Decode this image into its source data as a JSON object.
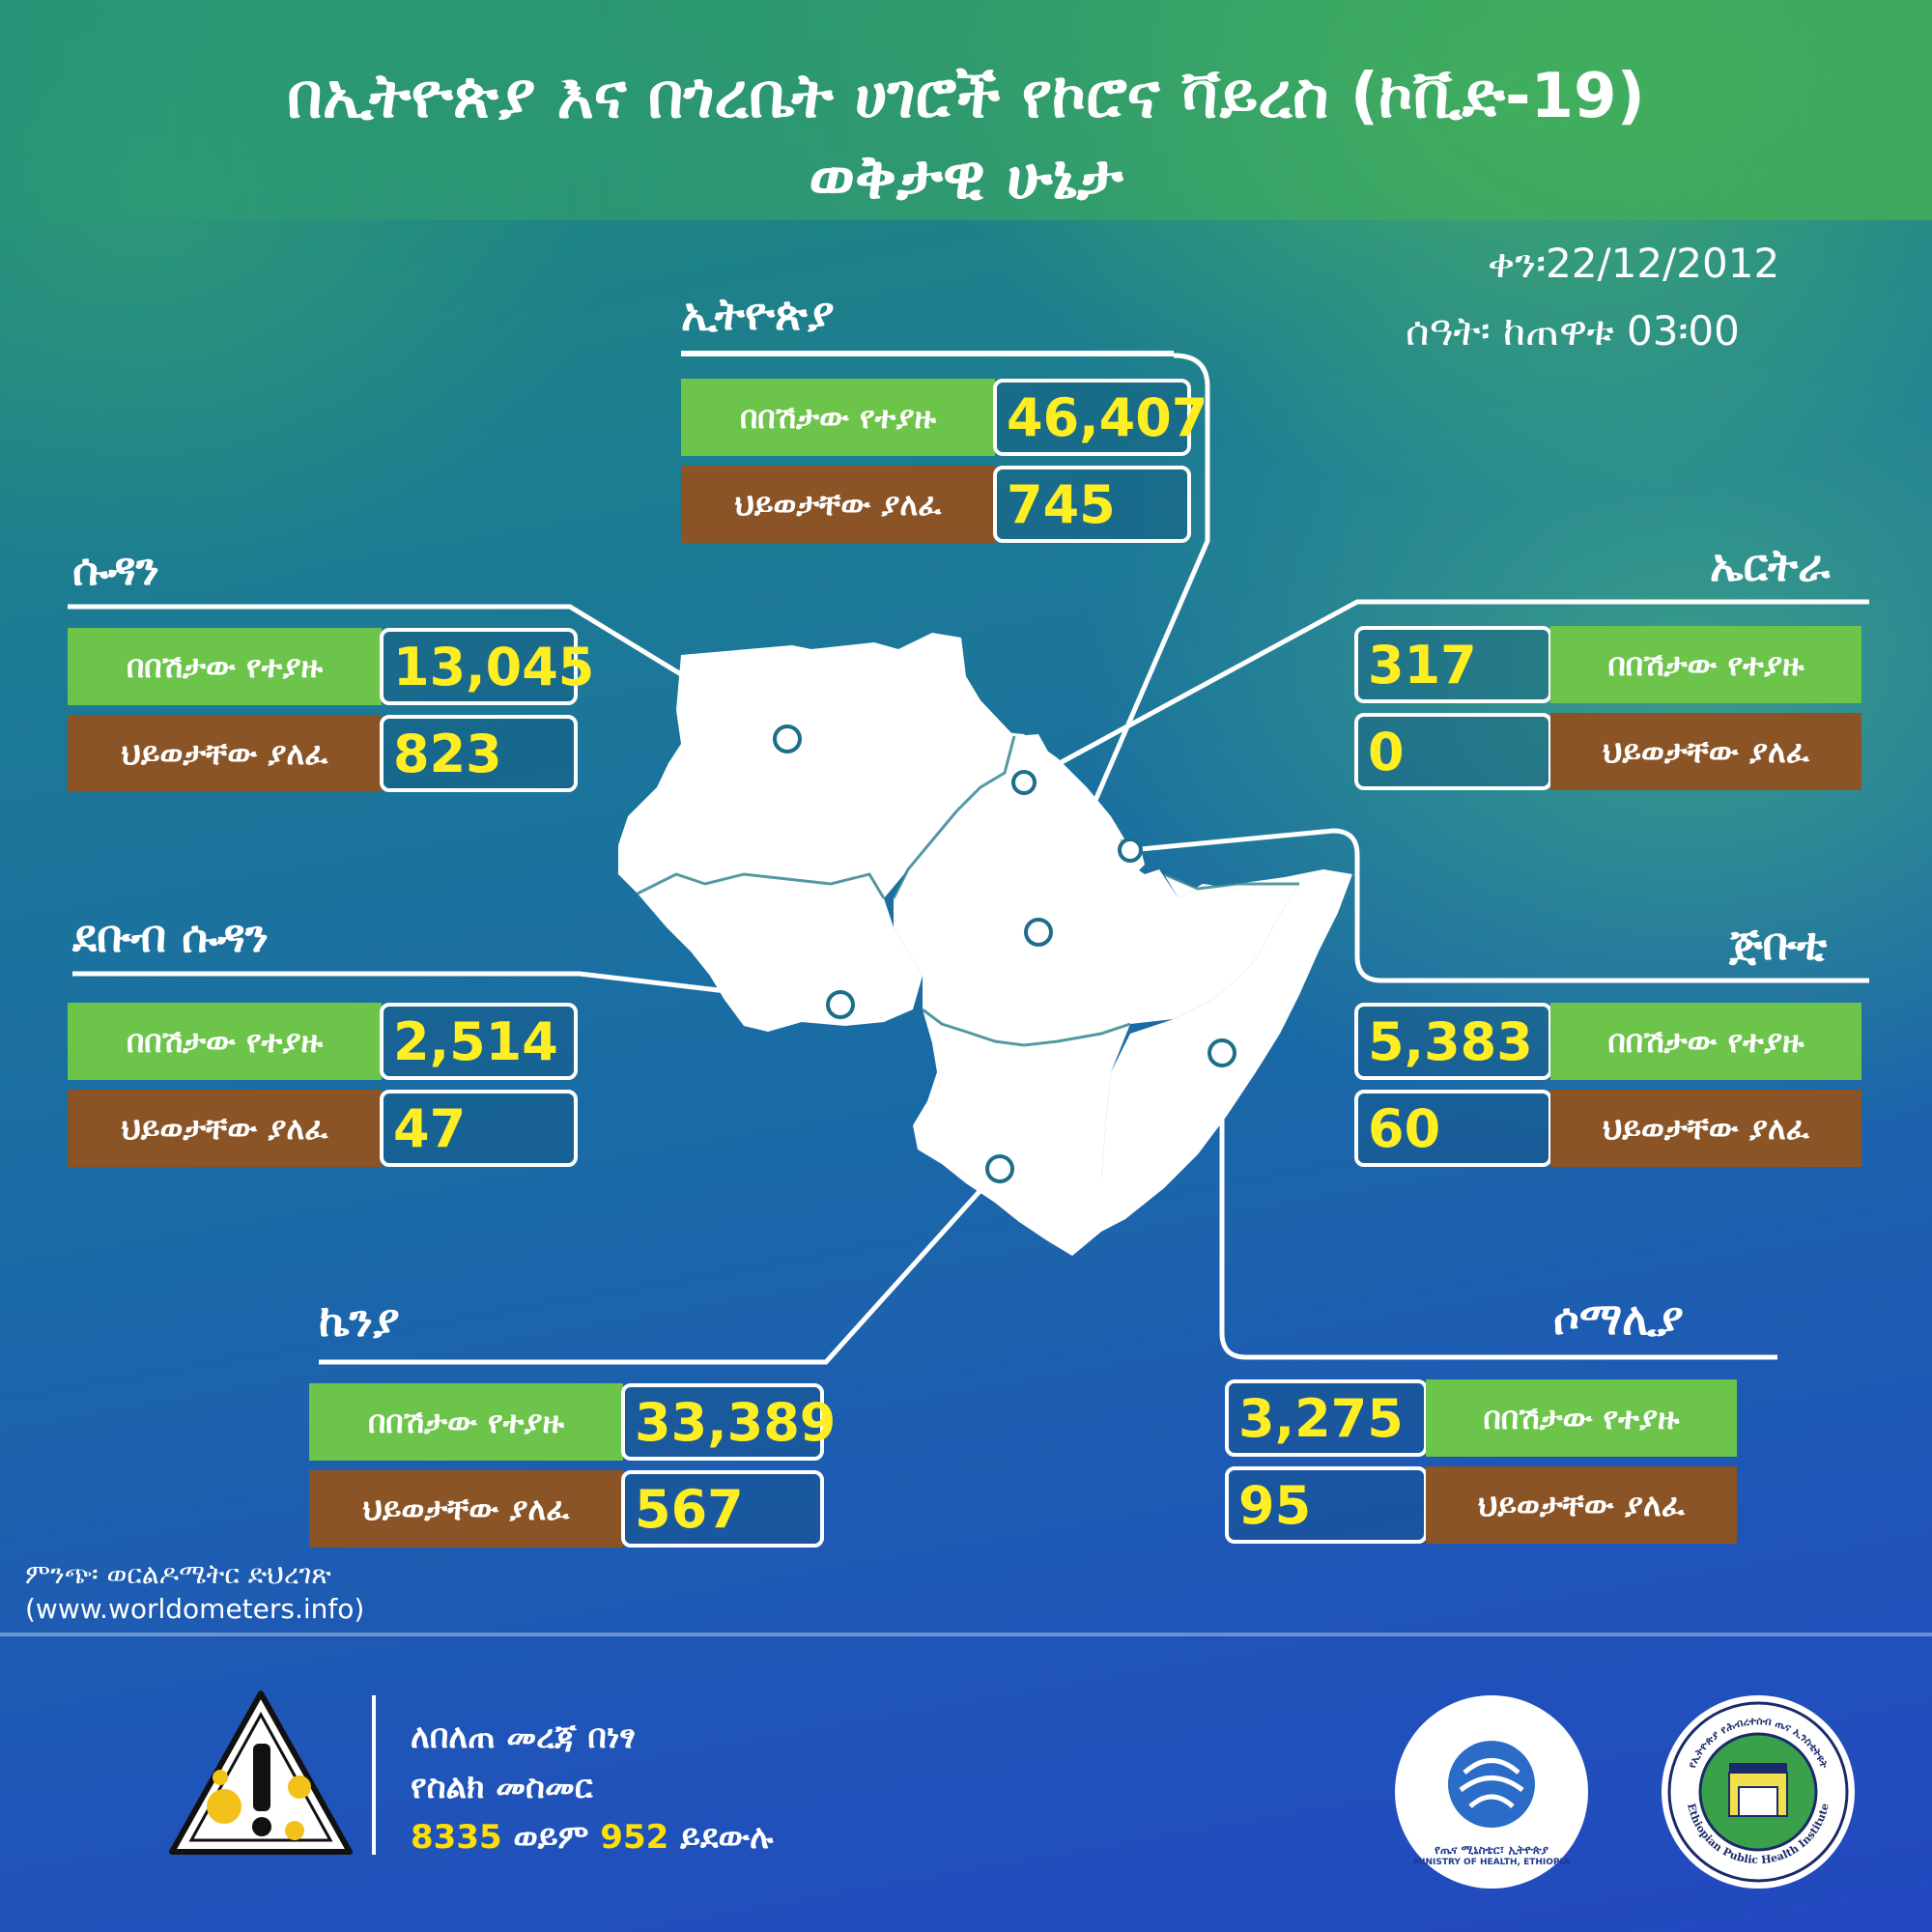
{
  "title": {
    "line1": "በኢትዮጵያ እና በጎረቤት ሀገሮች የኮሮና ቫይረስ (ኮቪድ-19)",
    "line2": "ወቅታዊ ሁኔታ"
  },
  "date": "ቀን፡22/12/2012",
  "time": "ሰዓት፡ ከጠዋቱ 03፡00",
  "labels": {
    "cases": "በበሽታው የተያዙ",
    "deaths": "ህይወታቸው ያለፈ"
  },
  "countries": {
    "ethiopia": {
      "name": "ኢትዮጵያ",
      "cases": "46,407",
      "deaths": "745"
    },
    "sudan": {
      "name": "ሱዳን",
      "cases": "13,045",
      "deaths": "823"
    },
    "south_sudan": {
      "name": "ደቡብ ሱዳን",
      "cases": "2,514",
      "deaths": "47"
    },
    "kenya": {
      "name": "ኬንያ",
      "cases": "33,389",
      "deaths": "567"
    },
    "eritrea": {
      "name": "ኤርትራ",
      "cases": "317",
      "deaths": "0"
    },
    "djibouti": {
      "name": "ጅቡቲ",
      "cases": "5,383",
      "deaths": "60"
    },
    "somalia": {
      "name": "ሶማሊያ",
      "cases": "3,275",
      "deaths": "95"
    }
  },
  "source": {
    "line1": "ምንጭ፡ ወርልዶሜትር ድህረገጽ",
    "line2": "(www.worldometers.info)"
  },
  "hotline": {
    "line1": "ለበለጠ መረጃ በነፃ",
    "line2": "የስልክ መስመር",
    "num1": "8335",
    "or": " ወይም ",
    "num2": "952",
    "call": " ይደውሉ"
  },
  "logos": {
    "moh_text": "የጤና ሚኒስቴር፣ ኢትዮጵያ",
    "moh_text_en": "MINISTRY OF HEALTH, ETHIOPIA",
    "ephi_ring": "የኢትዮጵያ የሕብረተሰብ ጤና ኢንስቲትዩት",
    "ephi_ring_en": "Ethiopian Public Health Institute"
  },
  "colors": {
    "cases_label": "#6cc44a",
    "deaths_label": "#8a5426",
    "value_text": "#ffee22"
  }
}
